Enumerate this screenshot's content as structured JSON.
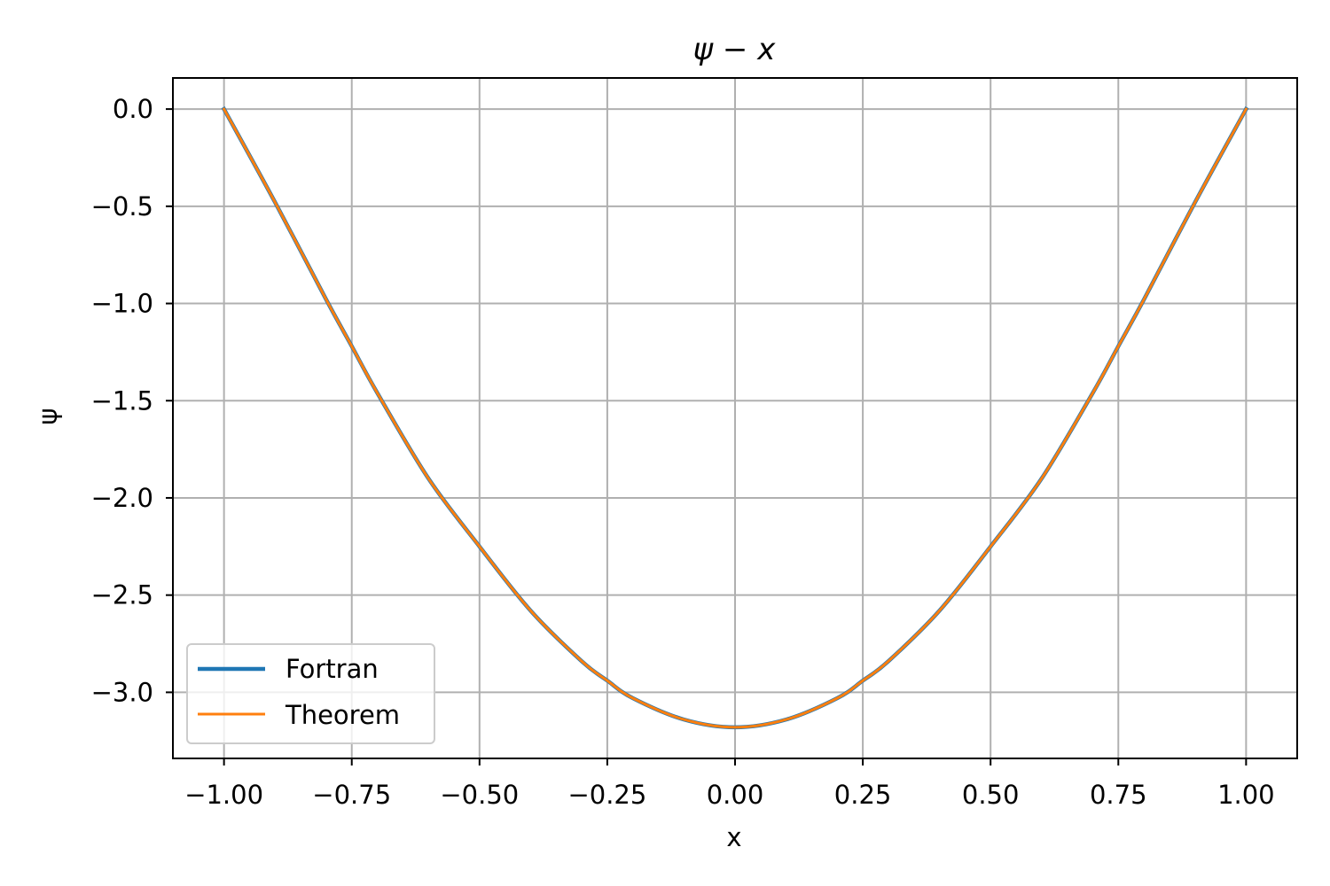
{
  "chart_data": {
    "type": "line",
    "title": "ψ − x",
    "xlabel": "x",
    "ylabel": "ψ",
    "xlim": [
      -1.1,
      1.1
    ],
    "ylim": [
      -3.34,
      0.16
    ],
    "xticks": [
      -1.0,
      -0.75,
      -0.5,
      -0.25,
      0.0,
      0.25,
      0.5,
      0.75,
      1.0
    ],
    "xtick_labels": [
      "−1.00",
      "−0.75",
      "−0.50",
      "−0.25",
      "0.00",
      "0.25",
      "0.50",
      "0.75",
      "1.00"
    ],
    "yticks": [
      0.0,
      -0.5,
      -1.0,
      -1.5,
      -2.0,
      -2.5,
      -3.0
    ],
    "ytick_labels": [
      "0.0",
      "−0.5",
      "−1.0",
      "−1.5",
      "−2.0",
      "−2.5",
      "−3.0"
    ],
    "grid": true,
    "legend_position": "lower-left",
    "x": [
      -1.0,
      -0.9,
      -0.8,
      -0.75,
      -0.7,
      -0.6,
      -0.5,
      -0.4,
      -0.3,
      -0.25,
      -0.2,
      -0.1,
      0.0,
      0.1,
      0.2,
      0.25,
      0.3,
      0.4,
      0.5,
      0.6,
      0.7,
      0.75,
      0.8,
      0.9,
      1.0
    ],
    "series": [
      {
        "name": "Fortran",
        "color": "#1f77b4",
        "values": [
          0.0,
          -0.48,
          -0.98,
          -1.22,
          -1.46,
          -1.9,
          -2.25,
          -2.58,
          -2.84,
          -2.94,
          -3.03,
          -3.14,
          -3.18,
          -3.14,
          -3.03,
          -2.94,
          -2.84,
          -2.58,
          -2.25,
          -1.9,
          -1.46,
          -1.22,
          -0.98,
          -0.48,
          0.0
        ]
      },
      {
        "name": "Theorem",
        "color": "#ff7f0e",
        "values": [
          0.0,
          -0.48,
          -0.98,
          -1.22,
          -1.46,
          -1.9,
          -2.25,
          -2.58,
          -2.84,
          -2.94,
          -3.03,
          -3.14,
          -3.18,
          -3.14,
          -3.03,
          -2.94,
          -2.84,
          -2.58,
          -2.25,
          -1.9,
          -1.46,
          -1.22,
          -0.98,
          -0.48,
          0.0
        ]
      }
    ]
  }
}
